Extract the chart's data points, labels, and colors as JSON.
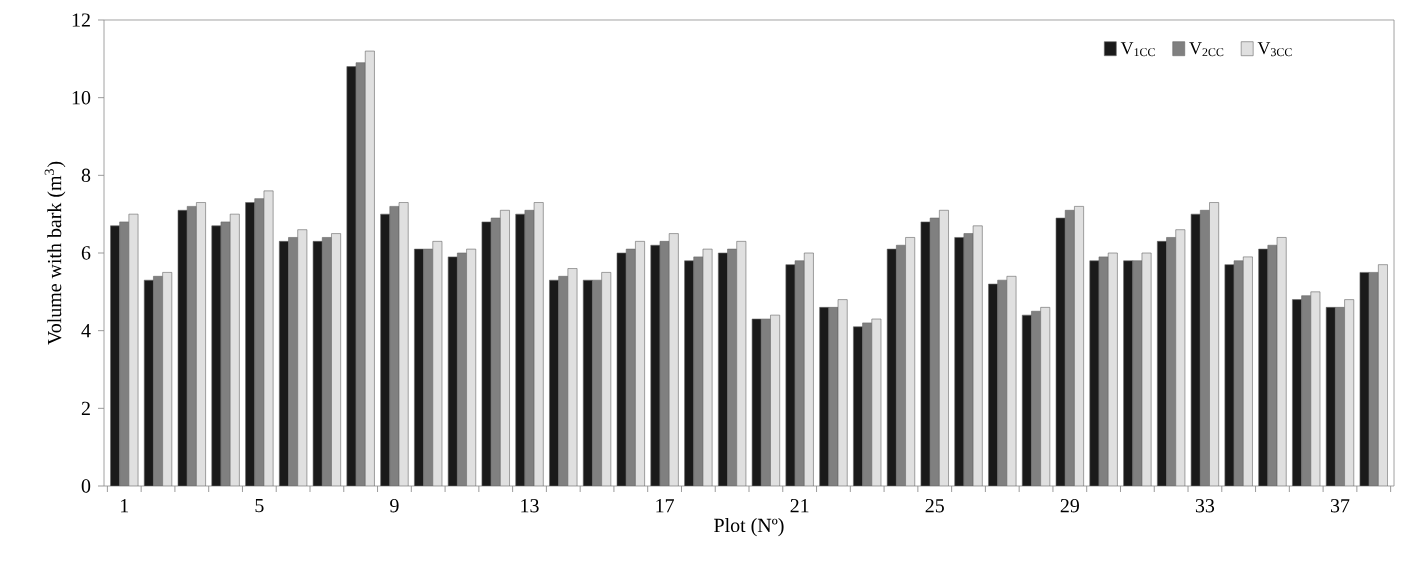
{
  "chart_data": {
    "type": "bar",
    "xlabel": "Plot (Nº)",
    "ylabel": "Volume with bark (m$^{3}$)",
    "categories": [
      "1",
      null,
      null,
      null,
      "5",
      null,
      null,
      null,
      "9",
      null,
      null,
      null,
      "13",
      null,
      null,
      null,
      "17",
      null,
      null,
      null,
      "21",
      null,
      null,
      null,
      "25",
      null,
      null,
      null,
      "29",
      null,
      null,
      null,
      "33",
      null,
      null,
      null,
      "37",
      null
    ],
    "series": [
      {
        "name": "V$_{1CC}$",
        "color": "#1a1a1a",
        "values": [
          6.7,
          5.3,
          7.1,
          6.7,
          7.3,
          6.3,
          6.3,
          10.8,
          7.0,
          6.1,
          5.9,
          6.8,
          7.0,
          5.3,
          5.3,
          6.0,
          6.2,
          5.8,
          6.0,
          4.3,
          5.7,
          4.6,
          4.1,
          6.1,
          6.8,
          6.4,
          5.2,
          4.4,
          6.9,
          5.8,
          5.8,
          6.3,
          7.0,
          5.7,
          6.1,
          4.8,
          4.6,
          5.5
        ]
      },
      {
        "name": "V$_{2CC}$",
        "color": "#808080",
        "values": [
          6.8,
          5.4,
          7.2,
          6.8,
          7.4,
          6.4,
          6.4,
          10.9,
          7.2,
          6.1,
          6.0,
          6.9,
          7.1,
          5.4,
          5.3,
          6.1,
          6.3,
          5.9,
          6.1,
          4.3,
          5.8,
          4.6,
          4.2,
          6.2,
          6.9,
          6.5,
          5.3,
          4.5,
          7.1,
          5.9,
          5.8,
          6.4,
          7.1,
          5.8,
          6.2,
          4.9,
          4.6,
          5.5
        ]
      },
      {
        "name": "V$_{3CC}$",
        "color": "#e0e0e0",
        "values": [
          7.0,
          5.5,
          7.3,
          7.0,
          7.6,
          6.6,
          6.5,
          11.2,
          7.3,
          6.3,
          6.1,
          7.1,
          7.3,
          5.6,
          5.5,
          6.3,
          6.5,
          6.1,
          6.3,
          4.4,
          6.0,
          4.8,
          4.3,
          6.4,
          7.1,
          6.7,
          5.4,
          4.6,
          7.2,
          6.0,
          6.0,
          6.6,
          7.3,
          5.9,
          6.4,
          5.0,
          4.8,
          5.7
        ]
      }
    ],
    "ylim": [
      0,
      12
    ],
    "yticks": [
      0,
      2,
      4,
      6,
      8,
      10,
      12
    ],
    "legend": "top right"
  }
}
